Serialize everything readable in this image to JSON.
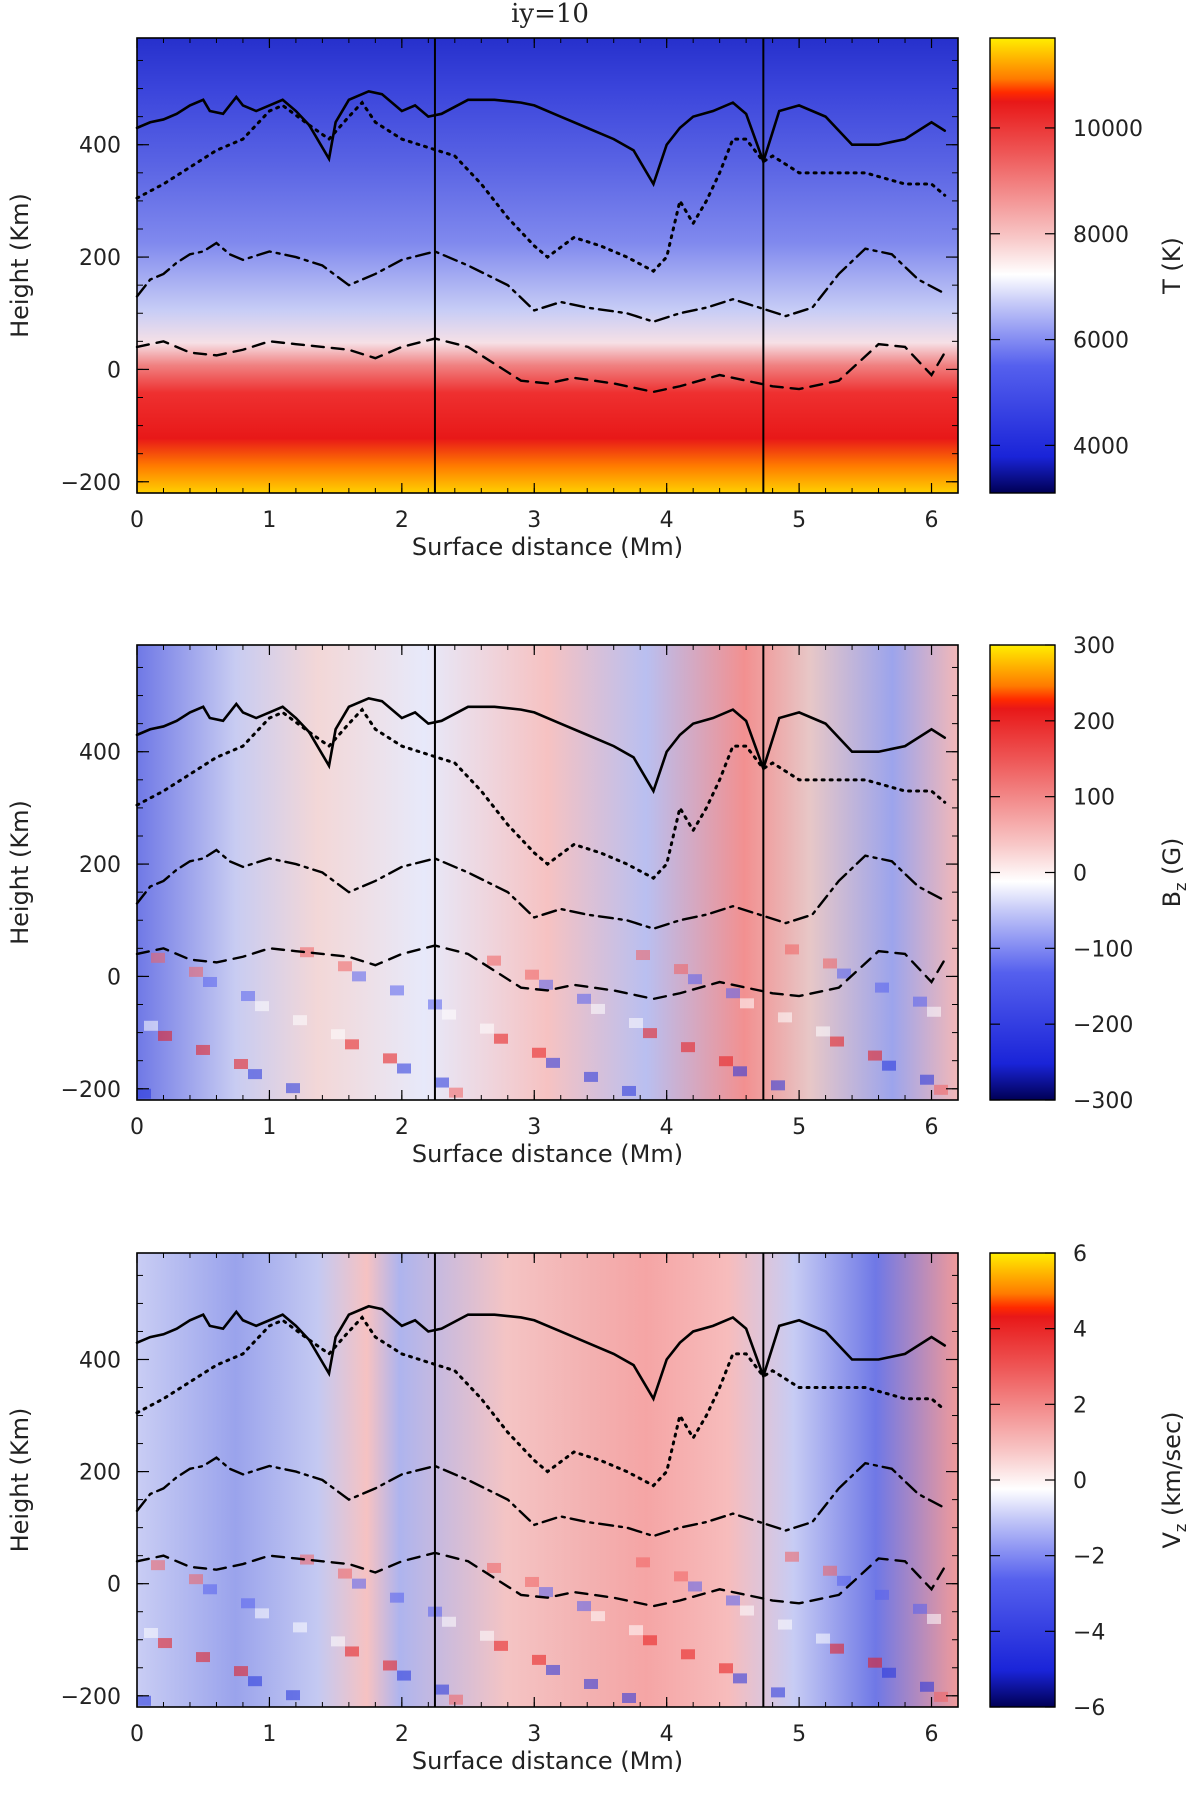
{
  "chart_data": [
    {
      "type": "heatmap",
      "title": "iy=10",
      "xlabel": "Surface distance (Mm)",
      "ylabel": "Height (Km)",
      "xlim": [
        0,
        6.2
      ],
      "ylim": [
        -220,
        590
      ],
      "x_ticks": [
        0,
        1,
        2,
        3,
        4,
        5,
        6
      ],
      "y_ticks": [
        -200,
        0,
        200,
        400
      ],
      "vertical_lines_x": [
        2.25,
        4.73
      ],
      "colorbar": {
        "label": "T (K)",
        "min": 3100,
        "max": 11700,
        "ticks": [
          4000,
          6000,
          8000,
          10000
        ]
      }
    },
    {
      "type": "heatmap",
      "title": "",
      "xlabel": "Surface distance (Mm)",
      "ylabel": "Height (Km)",
      "xlim": [
        0,
        6.2
      ],
      "ylim": [
        -220,
        590
      ],
      "x_ticks": [
        0,
        1,
        2,
        3,
        4,
        5,
        6
      ],
      "y_ticks": [
        -200,
        0,
        200,
        400
      ],
      "vertical_lines_x": [
        2.25,
        4.73
      ],
      "colorbar": {
        "label_main": "B",
        "label_sub": "z",
        "label_unit": " (G)",
        "min": -300,
        "max": 300,
        "ticks": [
          -300,
          -200,
          -100,
          0,
          100,
          200,
          300
        ]
      }
    },
    {
      "type": "heatmap",
      "title": "",
      "xlabel": "Surface distance (Mm)",
      "ylabel": "Height (Km)",
      "xlim": [
        0,
        6.2
      ],
      "ylim": [
        -220,
        590
      ],
      "x_ticks": [
        0,
        1,
        2,
        3,
        4,
        5,
        6
      ],
      "y_ticks": [
        -200,
        0,
        200,
        400
      ],
      "vertical_lines_x": [
        2.25,
        4.73
      ],
      "colorbar": {
        "label_main": "V",
        "label_sub": "z",
        "label_unit": " (km/sec)",
        "min": -6,
        "max": 6,
        "ticks": [
          -6,
          -4,
          -2,
          0,
          2,
          4,
          6
        ]
      }
    }
  ],
  "contours": {
    "solid": {
      "x": [
        0,
        0.1,
        0.2,
        0.3,
        0.4,
        0.5,
        0.55,
        0.65,
        0.75,
        0.8,
        0.9,
        1.0,
        1.1,
        1.2,
        1.3,
        1.45,
        1.5,
        1.6,
        1.75,
        1.85,
        2.0,
        2.1,
        2.2,
        2.3,
        2.5,
        2.7,
        2.9,
        3.0,
        3.2,
        3.4,
        3.6,
        3.75,
        3.9,
        4.0,
        4.1,
        4.2,
        4.35,
        4.5,
        4.6,
        4.73,
        4.85,
        5.0,
        5.2,
        5.4,
        5.6,
        5.8,
        6.0,
        6.1
      ],
      "y": [
        430,
        440,
        445,
        455,
        470,
        480,
        460,
        455,
        485,
        470,
        460,
        470,
        480,
        460,
        435,
        375,
        440,
        480,
        495,
        490,
        460,
        470,
        450,
        455,
        480,
        480,
        475,
        470,
        450,
        430,
        410,
        390,
        330,
        400,
        430,
        450,
        460,
        475,
        455,
        370,
        460,
        470,
        450,
        400,
        400,
        410,
        440,
        425
      ]
    },
    "dotted": {
      "x": [
        0,
        0.2,
        0.4,
        0.6,
        0.8,
        1.0,
        1.1,
        1.3,
        1.45,
        1.6,
        1.7,
        1.8,
        2.0,
        2.2,
        2.4,
        2.6,
        2.8,
        3.0,
        3.1,
        3.3,
        3.5,
        3.7,
        3.9,
        4.0,
        4.1,
        4.2,
        4.3,
        4.4,
        4.5,
        4.6,
        4.73,
        4.8,
        5.0,
        5.2,
        5.5,
        5.8,
        6.0,
        6.1
      ],
      "y": [
        305,
        330,
        360,
        390,
        410,
        460,
        470,
        435,
        410,
        450,
        475,
        440,
        410,
        395,
        380,
        330,
        270,
        220,
        200,
        235,
        220,
        200,
        175,
        200,
        300,
        260,
        300,
        350,
        410,
        410,
        370,
        380,
        350,
        350,
        350,
        330,
        330,
        310
      ]
    },
    "dashdot": {
      "x": [
        0,
        0.1,
        0.2,
        0.3,
        0.4,
        0.5,
        0.6,
        0.7,
        0.8,
        1.0,
        1.2,
        1.4,
        1.6,
        1.8,
        2.0,
        2.25,
        2.5,
        2.8,
        3.0,
        3.2,
        3.4,
        3.7,
        3.9,
        4.1,
        4.3,
        4.5,
        4.7,
        4.9,
        5.1,
        5.3,
        5.5,
        5.7,
        5.9,
        6.1
      ],
      "y": [
        130,
        160,
        170,
        190,
        205,
        210,
        225,
        205,
        195,
        210,
        200,
        185,
        150,
        170,
        195,
        210,
        185,
        150,
        105,
        120,
        110,
        100,
        85,
        100,
        110,
        125,
        110,
        95,
        110,
        170,
        215,
        205,
        160,
        135
      ]
    },
    "dashed": {
      "x": [
        0,
        0.2,
        0.4,
        0.6,
        0.8,
        1.0,
        1.2,
        1.4,
        1.6,
        1.8,
        2.0,
        2.25,
        2.5,
        2.7,
        2.9,
        3.1,
        3.3,
        3.6,
        3.9,
        4.1,
        4.4,
        4.6,
        4.8,
        5.0,
        5.3,
        5.6,
        5.8,
        6.0,
        6.1
      ],
      "y": [
        40,
        50,
        30,
        25,
        35,
        50,
        45,
        40,
        35,
        20,
        40,
        55,
        40,
        10,
        -20,
        -25,
        -15,
        -25,
        -40,
        -30,
        -10,
        -20,
        -30,
        -35,
        -20,
        45,
        40,
        -10,
        30
      ]
    }
  }
}
